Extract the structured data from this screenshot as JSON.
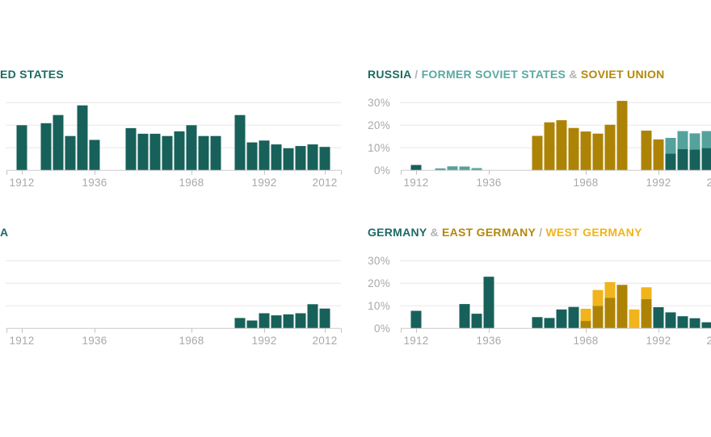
{
  "page": {
    "background": "#ffffff"
  },
  "palette": {
    "teal_dark": "#17615a",
    "teal_light": "#55a29d",
    "gold": "#ad8306",
    "yellow": "#f0b41c",
    "title_teal": "#1d6a64",
    "title_teal_light": "#5aa8a3",
    "title_gold": "#b5870b",
    "title_yellow": "#f0b41c",
    "title_gray": "#b3b3b3",
    "axis_label": "#a9a9a9",
    "gridline": "#e7e7e7",
    "axis_line": "#cccccc",
    "tick": "#c3c3c3"
  },
  "axis": {
    "y_ticks": [
      {
        "label": "0%",
        "value": 0
      },
      {
        "label": "10%",
        "value": 10
      },
      {
        "label": "20%",
        "value": 20
      },
      {
        "label": "30%",
        "value": 30
      }
    ],
    "x_tick_years": [
      1912,
      1936,
      1968,
      1992,
      2012
    ],
    "x_domain": [
      1907,
      2017
    ],
    "grid": true
  },
  "chart_data": [
    {
      "id": "united-states",
      "type": "bar",
      "title_parts": [
        {
          "text": "ED STATES",
          "color_key": "title_teal"
        }
      ],
      "ylim": [
        0,
        33
      ],
      "bars": [
        {
          "year": 1912,
          "segments": [
            {
              "series": "united-states",
              "color_key": "teal_dark",
              "value": 20.0
            }
          ]
        },
        {
          "year": 1920,
          "segments": [
            {
              "series": "united-states",
              "color_key": "teal_dark",
              "value": 20.9
            }
          ]
        },
        {
          "year": 1924,
          "segments": [
            {
              "series": "united-states",
              "color_key": "teal_dark",
              "value": 24.5
            }
          ]
        },
        {
          "year": 1928,
          "segments": [
            {
              "series": "united-states",
              "color_key": "teal_dark",
              "value": 15.2
            }
          ]
        },
        {
          "year": 1932,
          "segments": [
            {
              "series": "united-states",
              "color_key": "teal_dark",
              "value": 28.8
            }
          ]
        },
        {
          "year": 1936,
          "segments": [
            {
              "series": "united-states",
              "color_key": "teal_dark",
              "value": 13.5
            }
          ]
        },
        {
          "year": 1948,
          "segments": [
            {
              "series": "united-states",
              "color_key": "teal_dark",
              "value": 18.7
            }
          ]
        },
        {
          "year": 1952,
          "segments": [
            {
              "series": "united-states",
              "color_key": "teal_dark",
              "value": 16.2
            }
          ]
        },
        {
          "year": 1956,
          "segments": [
            {
              "series": "united-states",
              "color_key": "teal_dark",
              "value": 16.2
            }
          ]
        },
        {
          "year": 1960,
          "segments": [
            {
              "series": "united-states",
              "color_key": "teal_dark",
              "value": 15.2
            }
          ]
        },
        {
          "year": 1964,
          "segments": [
            {
              "series": "united-states",
              "color_key": "teal_dark",
              "value": 17.3
            }
          ]
        },
        {
          "year": 1968,
          "segments": [
            {
              "series": "united-states",
              "color_key": "teal_dark",
              "value": 20.0
            }
          ]
        },
        {
          "year": 1972,
          "segments": [
            {
              "series": "united-states",
              "color_key": "teal_dark",
              "value": 15.2
            }
          ]
        },
        {
          "year": 1976,
          "segments": [
            {
              "series": "united-states",
              "color_key": "teal_dark",
              "value": 15.2
            }
          ]
        },
        {
          "year": 1984,
          "segments": [
            {
              "series": "united-states",
              "color_key": "teal_dark",
              "value": 24.5
            }
          ]
        },
        {
          "year": 1988,
          "segments": [
            {
              "series": "united-states",
              "color_key": "teal_dark",
              "value": 12.4
            }
          ]
        },
        {
          "year": 1992,
          "segments": [
            {
              "series": "united-states",
              "color_key": "teal_dark",
              "value": 13.2
            }
          ]
        },
        {
          "year": 1996,
          "segments": [
            {
              "series": "united-states",
              "color_key": "teal_dark",
              "value": 11.5
            }
          ]
        },
        {
          "year": 2000,
          "segments": [
            {
              "series": "united-states",
              "color_key": "teal_dark",
              "value": 9.8
            }
          ]
        },
        {
          "year": 2004,
          "segments": [
            {
              "series": "united-states",
              "color_key": "teal_dark",
              "value": 10.8
            }
          ]
        },
        {
          "year": 2008,
          "segments": [
            {
              "series": "united-states",
              "color_key": "teal_dark",
              "value": 11.5
            }
          ]
        },
        {
          "year": 2012,
          "segments": [
            {
              "series": "united-states",
              "color_key": "teal_dark",
              "value": 10.4
            }
          ]
        }
      ]
    },
    {
      "id": "russia-soviet",
      "type": "bar",
      "title_parts": [
        {
          "text": "RUSSIA",
          "color_key": "title_teal"
        },
        {
          "text": " / ",
          "color_key": "title_gray"
        },
        {
          "text": "FORMER SOVIET STATES",
          "color_key": "title_teal_light"
        },
        {
          "text": " & ",
          "color_key": "title_gray"
        },
        {
          "text": "SOVIET UNION",
          "color_key": "title_gold"
        }
      ],
      "ylim": [
        0,
        33
      ],
      "bars": [
        {
          "year": 1912,
          "segments": [
            {
              "series": "russia",
              "color_key": "teal_dark",
              "value": 2.4
            }
          ]
        },
        {
          "year": 1920,
          "segments": [
            {
              "series": "former-soviet-states",
              "color_key": "teal_light",
              "value": 0.9
            }
          ]
        },
        {
          "year": 1924,
          "segments": [
            {
              "series": "former-soviet-states",
              "color_key": "teal_light",
              "value": 1.8
            }
          ]
        },
        {
          "year": 1928,
          "segments": [
            {
              "series": "former-soviet-states",
              "color_key": "teal_light",
              "value": 1.7
            }
          ]
        },
        {
          "year": 1932,
          "segments": [
            {
              "series": "former-soviet-states",
              "color_key": "teal_light",
              "value": 1.0
            }
          ]
        },
        {
          "year": 1952,
          "segments": [
            {
              "series": "soviet-union",
              "color_key": "gold",
              "value": 15.3
            }
          ]
        },
        {
          "year": 1956,
          "segments": [
            {
              "series": "soviet-union",
              "color_key": "gold",
              "value": 21.3
            }
          ]
        },
        {
          "year": 1960,
          "segments": [
            {
              "series": "soviet-union",
              "color_key": "gold",
              "value": 22.2
            }
          ]
        },
        {
          "year": 1964,
          "segments": [
            {
              "series": "soviet-union",
              "color_key": "gold",
              "value": 18.8
            }
          ]
        },
        {
          "year": 1968,
          "segments": [
            {
              "series": "soviet-union",
              "color_key": "gold",
              "value": 17.2
            }
          ]
        },
        {
          "year": 1972,
          "segments": [
            {
              "series": "soviet-union",
              "color_key": "gold",
              "value": 16.3
            }
          ]
        },
        {
          "year": 1976,
          "segments": [
            {
              "series": "soviet-union",
              "color_key": "gold",
              "value": 20.2
            }
          ]
        },
        {
          "year": 1980,
          "segments": [
            {
              "series": "soviet-union",
              "color_key": "gold",
              "value": 30.8
            }
          ]
        },
        {
          "year": 1988,
          "segments": [
            {
              "series": "soviet-union",
              "color_key": "gold",
              "value": 17.6
            }
          ]
        },
        {
          "year": 1992,
          "segments": [
            {
              "series": "soviet-union",
              "color_key": "gold",
              "value": 13.7
            }
          ]
        },
        {
          "year": 1996,
          "segments": [
            {
              "series": "russia",
              "color_key": "teal_dark",
              "value": 7.5
            },
            {
              "series": "former-soviet-states",
              "color_key": "teal_light",
              "value": 6.9
            }
          ]
        },
        {
          "year": 2000,
          "segments": [
            {
              "series": "russia",
              "color_key": "teal_dark",
              "value": 9.5
            },
            {
              "series": "former-soviet-states",
              "color_key": "teal_light",
              "value": 7.9
            }
          ]
        },
        {
          "year": 2004,
          "segments": [
            {
              "series": "russia",
              "color_key": "teal_dark",
              "value": 9.2
            },
            {
              "series": "former-soviet-states",
              "color_key": "teal_light",
              "value": 7.2
            }
          ]
        },
        {
          "year": 2008,
          "segments": [
            {
              "series": "russia",
              "color_key": "teal_dark",
              "value": 9.9
            },
            {
              "series": "former-soviet-states",
              "color_key": "teal_light",
              "value": 7.5
            }
          ]
        }
      ]
    },
    {
      "id": "china",
      "type": "bar",
      "title_parts": [
        {
          "text": "A",
          "color_key": "title_teal"
        }
      ],
      "ylim": [
        0,
        33
      ],
      "bars": [
        {
          "year": 1984,
          "segments": [
            {
              "series": "china",
              "color_key": "teal_dark",
              "value": 4.6
            }
          ]
        },
        {
          "year": 1988,
          "segments": [
            {
              "series": "china",
              "color_key": "teal_dark",
              "value": 3.5
            }
          ]
        },
        {
          "year": 1992,
          "segments": [
            {
              "series": "china",
              "color_key": "teal_dark",
              "value": 6.7
            }
          ]
        },
        {
          "year": 1996,
          "segments": [
            {
              "series": "china",
              "color_key": "teal_dark",
              "value": 5.8
            }
          ]
        },
        {
          "year": 2000,
          "segments": [
            {
              "series": "china",
              "color_key": "teal_dark",
              "value": 6.2
            }
          ]
        },
        {
          "year": 2004,
          "segments": [
            {
              "series": "china",
              "color_key": "teal_dark",
              "value": 6.7
            }
          ]
        },
        {
          "year": 2008,
          "segments": [
            {
              "series": "china",
              "color_key": "teal_dark",
              "value": 10.7
            }
          ]
        },
        {
          "year": 2012,
          "segments": [
            {
              "series": "china",
              "color_key": "teal_dark",
              "value": 8.8
            }
          ]
        }
      ]
    },
    {
      "id": "germany",
      "type": "bar",
      "title_parts": [
        {
          "text": "GERMANY",
          "color_key": "title_teal"
        },
        {
          "text": " & ",
          "color_key": "title_gray"
        },
        {
          "text": "EAST GERMANY",
          "color_key": "title_gold"
        },
        {
          "text": " / ",
          "color_key": "title_gray"
        },
        {
          "text": "WEST GERMANY",
          "color_key": "title_yellow"
        }
      ],
      "ylim": [
        0,
        33
      ],
      "bars": [
        {
          "year": 1912,
          "segments": [
            {
              "series": "germany",
              "color_key": "teal_dark",
              "value": 7.8
            }
          ]
        },
        {
          "year": 1928,
          "segments": [
            {
              "series": "germany",
              "color_key": "teal_dark",
              "value": 10.8
            }
          ]
        },
        {
          "year": 1932,
          "segments": [
            {
              "series": "germany",
              "color_key": "teal_dark",
              "value": 6.5
            }
          ]
        },
        {
          "year": 1936,
          "segments": [
            {
              "series": "germany",
              "color_key": "teal_dark",
              "value": 22.9
            }
          ]
        },
        {
          "year": 1952,
          "segments": [
            {
              "series": "germany",
              "color_key": "teal_dark",
              "value": 5.0
            }
          ]
        },
        {
          "year": 1956,
          "segments": [
            {
              "series": "germany",
              "color_key": "teal_dark",
              "value": 4.6
            }
          ]
        },
        {
          "year": 1960,
          "segments": [
            {
              "series": "germany",
              "color_key": "teal_dark",
              "value": 8.4
            }
          ]
        },
        {
          "year": 1964,
          "segments": [
            {
              "series": "germany",
              "color_key": "teal_dark",
              "value": 9.5
            }
          ]
        },
        {
          "year": 1968,
          "segments": [
            {
              "series": "east-germany",
              "color_key": "gold",
              "value": 3.3
            },
            {
              "series": "west-germany",
              "color_key": "yellow",
              "value": 5.4
            }
          ]
        },
        {
          "year": 1972,
          "segments": [
            {
              "series": "east-germany",
              "color_key": "gold",
              "value": 10.0
            },
            {
              "series": "west-germany",
              "color_key": "yellow",
              "value": 7.0
            }
          ]
        },
        {
          "year": 1976,
          "segments": [
            {
              "series": "east-germany",
              "color_key": "gold",
              "value": 13.5
            },
            {
              "series": "west-germany",
              "color_key": "yellow",
              "value": 7.0
            }
          ]
        },
        {
          "year": 1980,
          "segments": [
            {
              "series": "east-germany",
              "color_key": "gold",
              "value": 19.3
            }
          ]
        },
        {
          "year": 1984,
          "segments": [
            {
              "series": "west-germany",
              "color_key": "yellow",
              "value": 8.4
            }
          ]
        },
        {
          "year": 1988,
          "segments": [
            {
              "series": "east-germany",
              "color_key": "gold",
              "value": 13.0
            },
            {
              "series": "west-germany",
              "color_key": "yellow",
              "value": 5.2
            }
          ]
        },
        {
          "year": 1992,
          "segments": [
            {
              "series": "germany",
              "color_key": "teal_dark",
              "value": 9.4
            }
          ]
        },
        {
          "year": 1996,
          "segments": [
            {
              "series": "germany",
              "color_key": "teal_dark",
              "value": 7.1
            }
          ]
        },
        {
          "year": 2000,
          "segments": [
            {
              "series": "germany",
              "color_key": "teal_dark",
              "value": 5.4
            }
          ]
        },
        {
          "year": 2004,
          "segments": [
            {
              "series": "germany",
              "color_key": "teal_dark",
              "value": 4.5
            }
          ]
        },
        {
          "year": 2008,
          "segments": [
            {
              "series": "germany",
              "color_key": "teal_dark",
              "value": 2.7
            }
          ]
        }
      ]
    }
  ]
}
